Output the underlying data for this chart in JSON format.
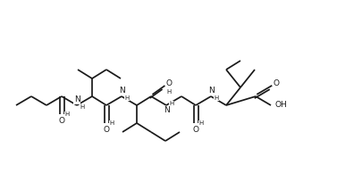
{
  "bg": "#ffffff",
  "lc": "#1a1a1a",
  "lw": 1.25,
  "fs": 6.5,
  "figsize": [
    3.77,
    2.04
  ],
  "dpi": 100,
  "xlim": [
    0,
    377
  ],
  "ylim": [
    0,
    204
  ]
}
